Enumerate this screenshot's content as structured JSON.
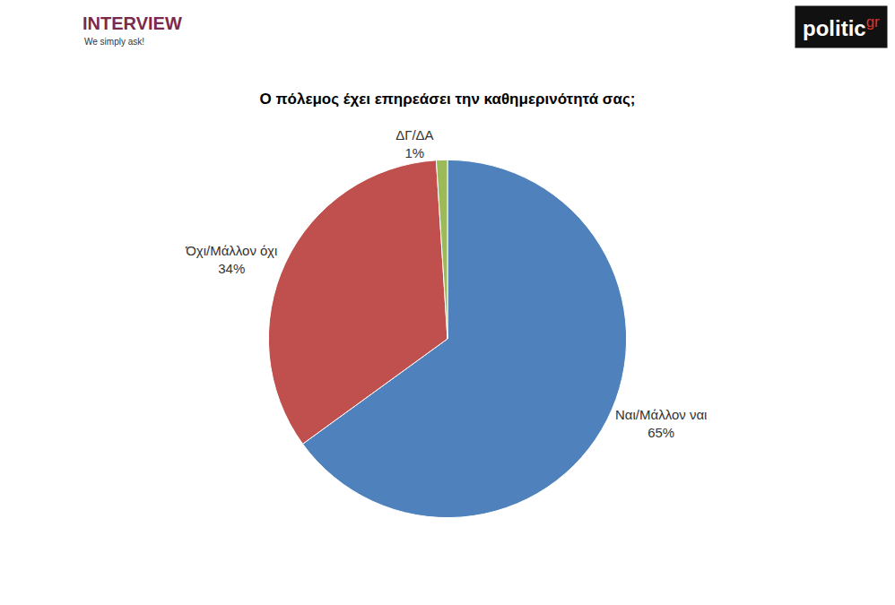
{
  "chart_data": {
    "type": "pie",
    "title": "Ο πόλεμος έχει επηρεάσει την καθημερινότητά σας;",
    "categories": [
      "Ναι/Μάλλον ναι",
      "Όχι/Μάλλον όχι",
      "ΔΓ/ΔΑ"
    ],
    "values": [
      65,
      34,
      1
    ],
    "value_labels": [
      "65%",
      "34%",
      "1%"
    ],
    "colors": [
      "#4f81bd",
      "#c0504d",
      "#9bbb59"
    ],
    "data_labels": true,
    "annotations": [
      "INTERVIEW",
      "We simply ask!",
      "politic",
      "gr"
    ]
  }
}
